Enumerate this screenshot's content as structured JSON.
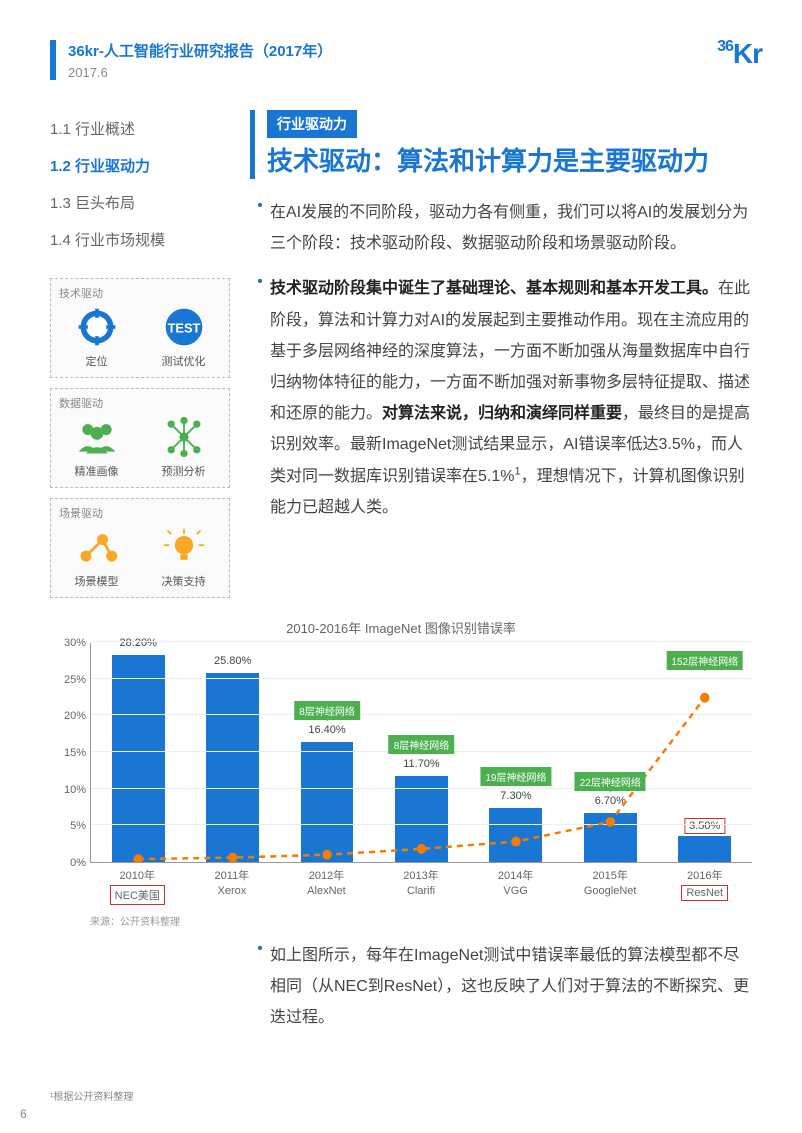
{
  "header": {
    "title": "36kr-人工智能行业研究报告（2017年）",
    "date": "2017.6",
    "logo_prefix": "36",
    "logo_suffix": "Kr"
  },
  "nav": {
    "items": [
      {
        "label": "1.1 行业概述",
        "active": false
      },
      {
        "label": "1.2 行业驱动力",
        "active": true
      },
      {
        "label": "1.3 巨头布局",
        "active": false
      },
      {
        "label": "1.4 行业市场规模",
        "active": false
      }
    ]
  },
  "drivers": [
    {
      "label": "技术驱动",
      "items": [
        {
          "name": "定位",
          "icon": "crosshair",
          "color": "#1976d2"
        },
        {
          "name": "测试优化",
          "icon": "test",
          "color": "#1976d2"
        }
      ]
    },
    {
      "label": "数据驱动",
      "items": [
        {
          "name": "精准画像",
          "icon": "people",
          "color": "#4caf50"
        },
        {
          "name": "预测分析",
          "icon": "network",
          "color": "#4caf50"
        }
      ]
    },
    {
      "label": "场景驱动",
      "items": [
        {
          "name": "场景模型",
          "icon": "nodes",
          "color": "#f9a825"
        },
        {
          "name": "决策支持",
          "icon": "bulb",
          "color": "#f9a825"
        }
      ]
    }
  ],
  "tag": "行业驱动力",
  "title": "技术驱动：算法和计算力是主要驱动力",
  "paragraphs": {
    "p1": "在AI发展的不同阶段，驱动力各有侧重，我们可以将AI的发展划分为三个阶段：技术驱动阶段、数据驱动阶段和场景驱动阶段。",
    "p2_bold1": "技术驱动阶段集中诞生了基础理论、基本规则和基本开发工具。",
    "p2_a": "在此阶段，算法和计算力对AI的发展起到主要推动作用。现在主流应用的基于多层网络神经的深度算法，一方面不断加强从海量数据库中自行归纳物体特征的能力，一方面不断加强对新事物多层特征提取、描述和还原的能力。",
    "p2_bold2": "对算法来说，归纳和演绎同样重要",
    "p2_b": "，最终目的是提高识别效率。最新ImageNet测试结果显示，AI错误率低达3.5%，而人类对同一数据库识别错误率在5.1%",
    "p2_c": "，理想情况下，计算机图像识别能力已超越人类。",
    "p3": "如上图所示，每年在ImageNet测试中错误率最低的算法模型都不尽相同（从NEC到ResNet），这也反映了人们对于算法的不断探究、更迭过程。"
  },
  "chart": {
    "title": "2010-2016年 ImageNet 图像识别错误率",
    "y_max": 30,
    "y_ticks": [
      0,
      5,
      10,
      15,
      20,
      25,
      30
    ],
    "y_tick_labels": [
      "0%",
      "5%",
      "10%",
      "15%",
      "20%",
      "25%",
      "30%"
    ],
    "bar_color": "#1976d2",
    "line_color": "#f57c00",
    "marker_color": "#f57c00",
    "anno_color": "#4caf50",
    "red_box_color": "#d32f2f",
    "data": [
      {
        "year": "2010年",
        "model": "NEC美国",
        "value": 28.2,
        "label": "28.20%",
        "anno": null,
        "red": true
      },
      {
        "year": "2011年",
        "model": "Xerox",
        "value": 25.8,
        "label": "25.80%",
        "anno": null,
        "red": false
      },
      {
        "year": "2012年",
        "model": "AlexNet",
        "value": 16.4,
        "label": "16.40%",
        "anno": "8层神经网络",
        "red": false
      },
      {
        "year": "2013年",
        "model": "Clarifi",
        "value": 11.7,
        "label": "11.70%",
        "anno": "8层神经网络",
        "red": false
      },
      {
        "year": "2014年",
        "model": "VGG",
        "value": 7.3,
        "label": "7.30%",
        "anno": "19层神经网络",
        "red": false
      },
      {
        "year": "2015年",
        "model": "GoogleNet",
        "value": 6.7,
        "label": "6.70%",
        "anno": "22层神经网络",
        "red": false
      },
      {
        "year": "2016年",
        "model": "ResNet",
        "value": 3.5,
        "label": "3.50%",
        "anno": "152层神经网络",
        "red": true,
        "label_red_box": true
      }
    ],
    "line_values": [
      0.4,
      0.6,
      1.0,
      1.8,
      2.8,
      5.5,
      22.5
    ],
    "source": "来源：公开资料整理"
  },
  "footnote": "¹根据公开资料整理",
  "page_num": "6"
}
